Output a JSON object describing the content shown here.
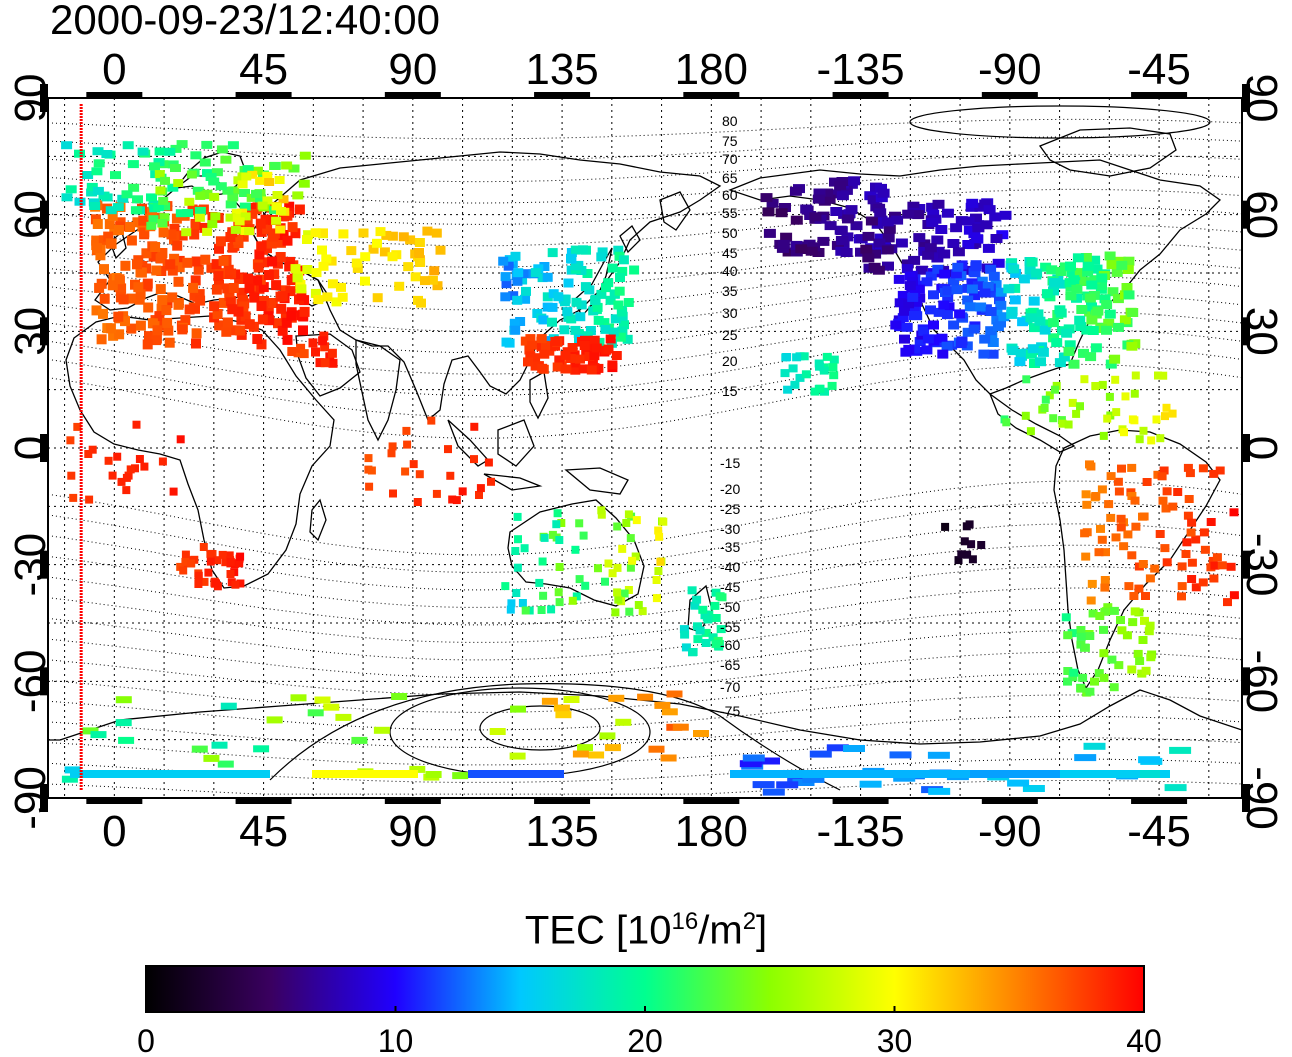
{
  "title": "2000-09-23/12:40:00",
  "top_axis_ticks": [
    "0",
    "45",
    "90",
    "135",
    "180",
    "-135",
    "-90",
    "-45"
  ],
  "bottom_axis_ticks": [
    "0",
    "45",
    "90",
    "135",
    "180",
    "-135",
    "-90",
    "-45"
  ],
  "left_axis_ticks": [
    "90",
    "60",
    "30",
    "0",
    "-30",
    "-60",
    "-90"
  ],
  "right_axis_ticks": [
    "90",
    "60",
    "30",
    "0",
    "-30",
    "-60",
    "-90"
  ],
  "contour_labels_north": [
    "80",
    "75",
    "70",
    "65",
    "60",
    "55",
    "50",
    "45",
    "40",
    "35",
    "30",
    "25",
    "20",
    "15"
  ],
  "contour_labels_south": [
    "-15",
    "-20",
    "-25",
    "-30",
    "-35",
    "-40",
    "-45",
    "-50",
    "-55",
    "-60",
    "-65",
    "-70",
    "-75"
  ],
  "colorbar": {
    "label_main": "TEC  [10",
    "label_sup1": "16",
    "label_mid": "/m",
    "label_sup2": "2",
    "label_end": "]",
    "ticks": [
      "0",
      "10",
      "20",
      "30",
      "40"
    ],
    "min": 0,
    "max": 40,
    "colormap": [
      "#000000",
      "#3a0060",
      "#2000ff",
      "#00c8ff",
      "#00ff90",
      "#8cff00",
      "#ffff00",
      "#ff8000",
      "#ff0000"
    ]
  },
  "map": {
    "lon_range": [
      -20,
      340
    ],
    "lat_range": [
      -90,
      90
    ],
    "terminator_longitude": -10,
    "terminator_color": "#ff0000"
  },
  "tec_regions": [
    {
      "name": "europe",
      "value": 38
    },
    {
      "name": "middle-east",
      "value": 38
    },
    {
      "name": "africa-west",
      "value": 38
    },
    {
      "name": "south-africa",
      "value": 38
    },
    {
      "name": "central-asia",
      "value": 31
    },
    {
      "name": "russia-north",
      "value": 22
    },
    {
      "name": "scandinavia",
      "value": 24
    },
    {
      "name": "japan",
      "value": 16
    },
    {
      "name": "china-south",
      "value": 38
    },
    {
      "name": "australia",
      "value": 22
    },
    {
      "name": "new-zealand",
      "value": 18
    },
    {
      "name": "india",
      "value": 38
    },
    {
      "name": "alaska",
      "value": 6
    },
    {
      "name": "canada-west",
      "value": 6
    },
    {
      "name": "usa-west",
      "value": 11
    },
    {
      "name": "usa-east",
      "value": 20
    },
    {
      "name": "hawaii",
      "value": 18
    },
    {
      "name": "caribbean",
      "value": 24
    },
    {
      "name": "brazil",
      "value": 38
    },
    {
      "name": "argentina",
      "value": 24
    },
    {
      "name": "pacific-south",
      "value": 2
    },
    {
      "name": "antarctica-east",
      "value": 14
    },
    {
      "name": "antarctica-west",
      "value": 16
    }
  ]
}
